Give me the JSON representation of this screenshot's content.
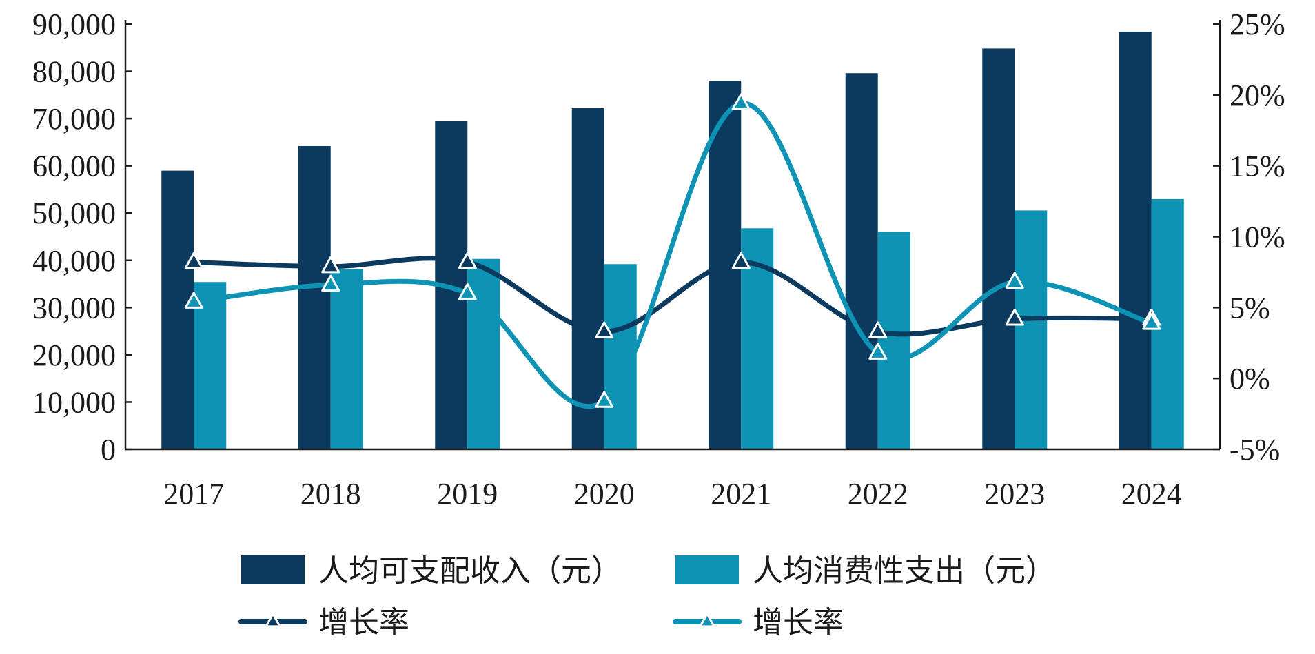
{
  "chart_data": {
    "type": "bar",
    "categories": [
      "2017",
      "2018",
      "2019",
      "2020",
      "2021",
      "2022",
      "2023",
      "2024"
    ],
    "series": [
      {
        "name": "人均可支配收入（元）",
        "type": "bar",
        "axis": "left",
        "color": "#0b3a5e",
        "values": [
          58988,
          64183,
          69442,
          72232,
          78027,
          79610,
          84834,
          88366
        ]
      },
      {
        "name": "人均消费性支出（元）",
        "type": "bar",
        "axis": "left",
        "color": "#0e93b5",
        "values": [
          35417,
          38152,
          40299,
          39201,
          46776,
          46045,
          50561,
          52954
        ]
      },
      {
        "name": "增长率",
        "type": "line",
        "axis": "right",
        "color": "#0b3a5e",
        "marker": "triangle",
        "values": [
          8.2,
          7.9,
          8.2,
          3.3,
          8.2,
          3.3,
          4.2,
          4.2
        ]
      },
      {
        "name": "增长率",
        "type": "line",
        "axis": "right",
        "color": "#0e93b5",
        "marker": "triangle",
        "values": [
          5.4,
          6.6,
          6.0,
          -1.6,
          19.4,
          1.8,
          6.8,
          3.9
        ]
      }
    ],
    "y_left": {
      "lim": [
        0,
        90000
      ],
      "ticks": [
        0,
        10000,
        20000,
        30000,
        40000,
        50000,
        60000,
        70000,
        80000,
        90000
      ],
      "tick_labels": [
        "0",
        "10,000",
        "20,000",
        "30,000",
        "40,000",
        "50,000",
        "60,000",
        "70,000",
        "80,000",
        "90,000"
      ]
    },
    "y_right": {
      "lim": [
        -5,
        25
      ],
      "ticks": [
        -5,
        0,
        5,
        10,
        15,
        20,
        25
      ],
      "tick_labels": [
        "-5%",
        "0%",
        "5%",
        "10%",
        "15%",
        "20%",
        "25%"
      ]
    },
    "title": "",
    "xlabel": "",
    "ylabel": "",
    "grid": false,
    "legend": "bottom"
  }
}
